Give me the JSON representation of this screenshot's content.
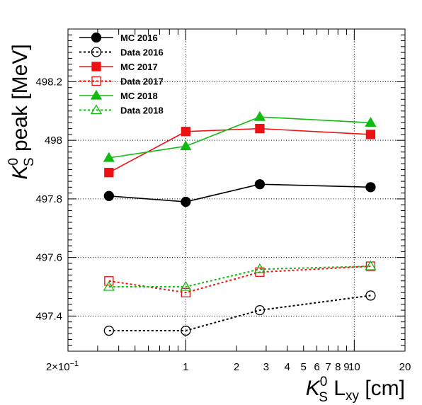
{
  "chart_data": {
    "type": "line",
    "xscale": "log",
    "xlim": [
      0.2,
      20
    ],
    "ylim": [
      497.28,
      498.38
    ],
    "grid": true,
    "legend_position": "top-left",
    "xlabel": {
      "base": "K",
      "sup": "0",
      "sub": "S",
      "main": " L",
      "main_sub": "xy",
      "unit": " [cm]"
    },
    "ylabel": {
      "base": "K",
      "sup": "0",
      "sub": "S",
      "rest": " peak [MeV]"
    },
    "x_ticks": [
      {
        "value": 0.2,
        "label": "2×10",
        "exp": "−1"
      },
      {
        "value": 1,
        "label": "1"
      },
      {
        "value": 2,
        "label": "2"
      },
      {
        "value": 3,
        "label": "3"
      },
      {
        "value": 4,
        "label": "4"
      },
      {
        "value": 5,
        "label": "5"
      },
      {
        "value": 6,
        "label": "6"
      },
      {
        "value": 7,
        "label": "7"
      },
      {
        "value": 8,
        "label": "8"
      },
      {
        "value": 9,
        "label": "9"
      },
      {
        "value": 10,
        "label": "10"
      },
      {
        "value": 20,
        "label": "20"
      }
    ],
    "y_ticks": [
      {
        "value": 497.4,
        "label": "497.4"
      },
      {
        "value": 497.6,
        "label": "497.6"
      },
      {
        "value": 497.8,
        "label": "497.8"
      },
      {
        "value": 498.0,
        "label": "498"
      },
      {
        "value": 498.2,
        "label": "498.2"
      }
    ],
    "x": [
      0.35,
      1.0,
      2.75,
      12.5
    ],
    "series": [
      {
        "name": "MC 2016",
        "color": "#000000",
        "marker": "circle",
        "filled": true,
        "dashed": false,
        "values": [
          497.81,
          497.79,
          497.85,
          497.84
        ]
      },
      {
        "name": "Data 2016",
        "color": "#000000",
        "marker": "circle",
        "filled": false,
        "dashed": true,
        "values": [
          497.35,
          497.35,
          497.42,
          497.47
        ]
      },
      {
        "name": "MC 2017",
        "color": "#ee1111",
        "marker": "square",
        "filled": true,
        "dashed": false,
        "values": [
          497.89,
          498.03,
          498.04,
          498.02
        ]
      },
      {
        "name": "Data 2017",
        "color": "#ee1111",
        "marker": "square",
        "filled": false,
        "dashed": true,
        "values": [
          497.52,
          497.48,
          497.55,
          497.57
        ]
      },
      {
        "name": "MC 2018",
        "color": "#11bb11",
        "marker": "triangle",
        "filled": true,
        "dashed": false,
        "values": [
          497.94,
          497.98,
          498.08,
          498.06
        ]
      },
      {
        "name": "Data 2018",
        "color": "#11bb11",
        "marker": "triangle",
        "filled": false,
        "dashed": true,
        "values": [
          497.5,
          497.5,
          497.56,
          497.57
        ]
      }
    ]
  }
}
